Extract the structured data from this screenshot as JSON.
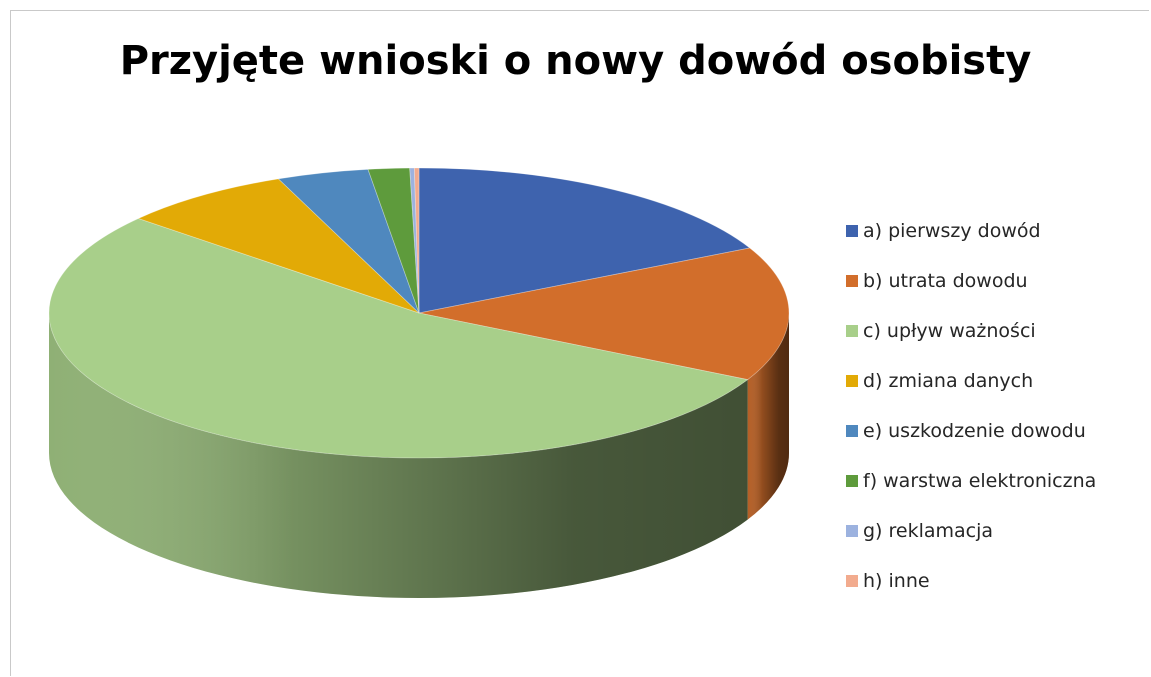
{
  "chart_data": {
    "type": "pie",
    "title": "Przyjęte wnioski o nowy dowód osobisty",
    "three_d": true,
    "legend_position": "right",
    "categories": [
      "a) pierwszy dowód",
      "b) utrata dowodu",
      "c) upływ ważności",
      "d) zmiana danych",
      "e) uszkodzenie dowodu",
      "f) warstwa elektroniczna",
      "g) reklamacja",
      "h) inne"
    ],
    "values": [
      17.6,
      15.0,
      53.7,
      7.5,
      4.0,
      1.8,
      0.2,
      0.2
    ],
    "value_unit": "percent of total (estimated)",
    "colors": [
      "#3e63ae",
      "#d26e2b",
      "#a8cf8a",
      "#e2aa06",
      "#4f88be",
      "#5e9b3c",
      "#9cb2df",
      "#f2ab8e"
    ]
  }
}
